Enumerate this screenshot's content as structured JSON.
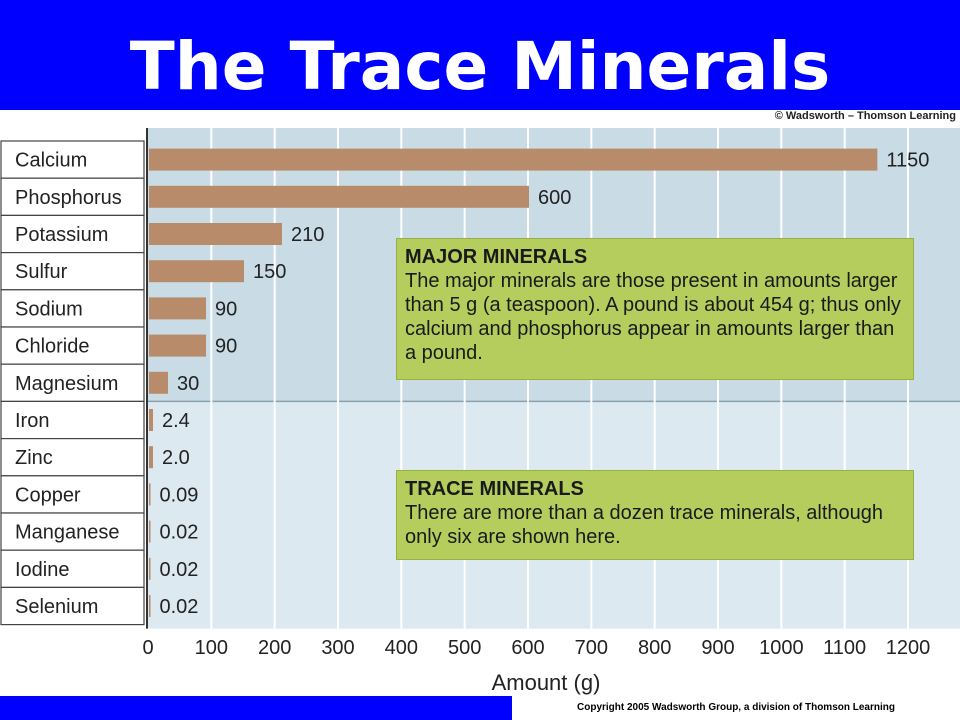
{
  "title": "The Trace Minerals",
  "credit": "© Wadsworth – Thomson Learning",
  "copyright": "Copyright 2005 Wadsworth Group, a division of Thomson Learning",
  "colors": {
    "header": "#0000ff",
    "bar": "#b88c6a",
    "major_bg": "#c9dbe5",
    "trace_bg": "#dde9f1",
    "note": "#b5cd5c"
  },
  "notes": {
    "major": {
      "heading": "MAJOR MINERALS",
      "body": "The major minerals are those present in amounts larger than 5 g (a teaspoon). A pound is about 454 g; thus only calcium and phosphorus appear in amounts larger than a pound."
    },
    "trace": {
      "heading": "TRACE MINERALS",
      "body": "There are more than a dozen trace minerals, although only six are shown here."
    }
  },
  "chart_data": {
    "type": "bar",
    "orientation": "horizontal",
    "xlabel": "Amount (g)",
    "xlim": [
      0,
      1200
    ],
    "xticks": [
      "0",
      "100",
      "200",
      "300",
      "400",
      "500",
      "600",
      "700",
      "800",
      "900",
      "1000",
      "1100",
      "1200"
    ],
    "grid": true,
    "categories": [
      "Calcium",
      "Phosphorus",
      "Potassium",
      "Sulfur",
      "Sodium",
      "Chloride",
      "Magnesium",
      "Iron",
      "Zinc",
      "Copper",
      "Manganese",
      "Iodine",
      "Selenium"
    ],
    "values": [
      1150,
      600,
      210,
      150,
      90,
      90,
      30,
      2.4,
      2.0,
      0.09,
      0.02,
      0.02,
      0.02
    ],
    "value_labels": [
      "1150",
      "600",
      "210",
      "150",
      "90",
      "90",
      "30",
      "2.4",
      "2.0",
      "0.09",
      "0.02",
      "0.02",
      "0.02"
    ],
    "groups": [
      {
        "name": "MAJOR MINERALS",
        "count": 7
      },
      {
        "name": "TRACE MINERALS",
        "count": 6
      }
    ]
  }
}
